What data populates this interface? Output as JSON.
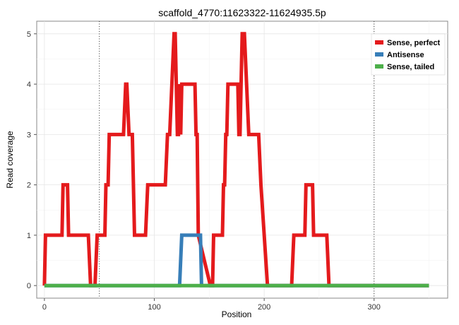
{
  "chart_data": {
    "type": "line",
    "title": "scaffold_4770:11623322-11624935.5p",
    "xlabel": "Position",
    "ylabel": "Read coverage",
    "xlim": [
      -7,
      367
    ],
    "ylim": [
      -0.25,
      5.25
    ],
    "x_ticks": [
      0,
      100,
      200,
      300
    ],
    "y_ticks": [
      0,
      1,
      2,
      3,
      4,
      5
    ],
    "grid": true,
    "legend_position": "top-right",
    "vlines": [
      50,
      300
    ],
    "series": [
      {
        "name": "Sense, perfect",
        "color": "#e41a1c",
        "points": [
          [
            0,
            0
          ],
          [
            1,
            1
          ],
          [
            16,
            1
          ],
          [
            17,
            2
          ],
          [
            21,
            2
          ],
          [
            22,
            1
          ],
          [
            40,
            1
          ],
          [
            42,
            0
          ],
          [
            46,
            0
          ],
          [
            48,
            1
          ],
          [
            55,
            1
          ],
          [
            56,
            2
          ],
          [
            58,
            2
          ],
          [
            59,
            3
          ],
          [
            72,
            3
          ],
          [
            74,
            4
          ],
          [
            75,
            4
          ],
          [
            77,
            3
          ],
          [
            80,
            3
          ],
          [
            82,
            1
          ],
          [
            92,
            1
          ],
          [
            94,
            2
          ],
          [
            110,
            2
          ],
          [
            112,
            3
          ],
          [
            114,
            3
          ],
          [
            116,
            4
          ],
          [
            118,
            5
          ],
          [
            119,
            5
          ],
          [
            121,
            3
          ],
          [
            122,
            3
          ],
          [
            123,
            4
          ],
          [
            124,
            3
          ],
          [
            125,
            4
          ],
          [
            137,
            4
          ],
          [
            138,
            3
          ],
          [
            139,
            3
          ],
          [
            140,
            1
          ],
          [
            151,
            0
          ],
          [
            153,
            0
          ],
          [
            154,
            1
          ],
          [
            162,
            1
          ],
          [
            163,
            2
          ],
          [
            164,
            2
          ],
          [
            165,
            3
          ],
          [
            166,
            3
          ],
          [
            167,
            4
          ],
          [
            176,
            4
          ],
          [
            177,
            3
          ],
          [
            178,
            3
          ],
          [
            179,
            4
          ],
          [
            180,
            5
          ],
          [
            182,
            5
          ],
          [
            184,
            4
          ],
          [
            186,
            3
          ],
          [
            195,
            3
          ],
          [
            197,
            2
          ],
          [
            203,
            0
          ],
          [
            225,
            0
          ],
          [
            227,
            1
          ],
          [
            237,
            1
          ],
          [
            238,
            2
          ],
          [
            244,
            2
          ],
          [
            245,
            1
          ],
          [
            257,
            1
          ],
          [
            259,
            0
          ],
          [
            350,
            0
          ]
        ]
      },
      {
        "name": "Antisense",
        "color": "#377eb8",
        "points": [
          [
            0,
            0
          ],
          [
            123,
            0
          ],
          [
            125,
            1
          ],
          [
            142,
            1
          ],
          [
            143,
            0
          ],
          [
            350,
            0
          ]
        ]
      },
      {
        "name": "Sense, tailed",
        "color": "#4daf4a",
        "points": [
          [
            0,
            0
          ],
          [
            350,
            0
          ]
        ]
      }
    ]
  }
}
